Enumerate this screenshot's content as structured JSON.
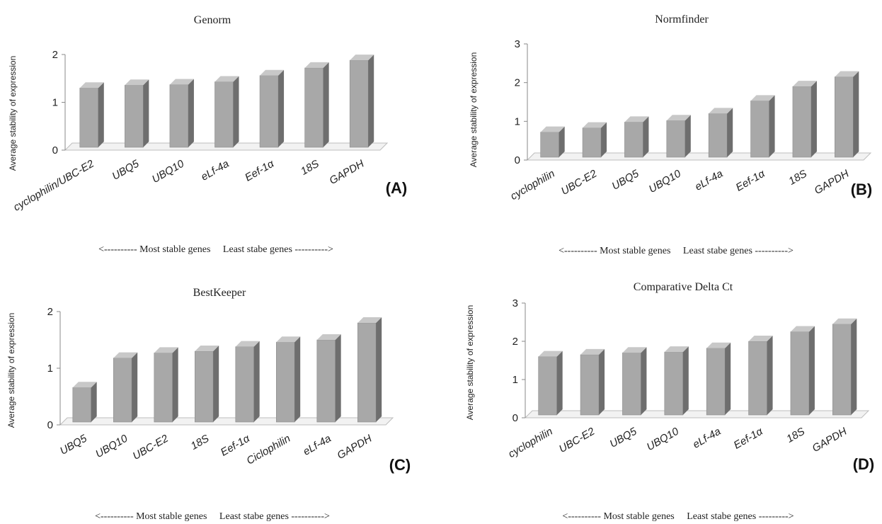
{
  "chart_data": [
    {
      "type": "bar",
      "title": "Genorm",
      "panel_label": "(A)",
      "ylabel": "Average stability of expression",
      "footer": "<---------- Most stable genes     Least stabe genes ---------->",
      "ylim": [
        0,
        2
      ],
      "yticks": [
        0,
        1,
        2
      ],
      "categories": [
        "cyclophilin/UBC-E2",
        "UBQ5",
        "UBQ10",
        "eLf-4a",
        "Eef-1α",
        "18S",
        "GAPDH"
      ],
      "values": [
        1.3,
        1.36,
        1.37,
        1.43,
        1.56,
        1.72,
        1.88
      ]
    },
    {
      "type": "bar",
      "title": "Normfinder",
      "panel_label": "(B)",
      "ylabel": "Average stability of expression",
      "footer": "<---------- Most stable genes     Least stabe genes ---------->",
      "ylim": [
        0,
        3
      ],
      "yticks": [
        0,
        1,
        2,
        3
      ],
      "categories": [
        "cyclophilin",
        "UBC-E2",
        "UBQ5",
        "UBQ10",
        "eLf-4a",
        "Eef-1α",
        "18S",
        "GAPDH"
      ],
      "values": [
        0.72,
        0.83,
        0.98,
        1.02,
        1.2,
        1.53,
        1.9,
        2.15
      ]
    },
    {
      "type": "bar",
      "title": "BestKeeper",
      "panel_label": "(C)",
      "ylabel": "Average stability of expression",
      "footer": "<---------- Most stable genes     Least stabe genes ---------->",
      "ylim": [
        0,
        2
      ],
      "yticks": [
        0,
        1,
        2
      ],
      "categories": [
        "UBQ5",
        "UBQ10",
        "UBC-E2",
        "18S",
        "Eef-1α",
        "Ciclophilin",
        "eLf-4a",
        "GAPDH"
      ],
      "values": [
        0.66,
        1.18,
        1.27,
        1.3,
        1.38,
        1.46,
        1.5,
        1.8
      ]
    },
    {
      "type": "bar",
      "title": "Comparative Delta Ct",
      "panel_label": "(D)",
      "ylabel": "Average stability of expression",
      "footer": "<---------- Most stable genes     Least stabe genes --------->",
      "ylim": [
        0,
        3
      ],
      "yticks": [
        0,
        1,
        2,
        3
      ],
      "categories": [
        "cyclophilin",
        "UBC-E2",
        "UBQ5",
        "UBQ10",
        "eLf-4a",
        "Eef-1α",
        "18S",
        "GAPDH"
      ],
      "values": [
        1.6,
        1.65,
        1.7,
        1.72,
        1.82,
        2.0,
        2.25,
        2.45
      ]
    }
  ],
  "colors": {
    "bar_front": "#a8a8a8",
    "bar_side": "#6e6e6e",
    "bar_top": "#c8c8c8",
    "floor": "#f2f2f2",
    "axis": "#8a8a8a"
  }
}
